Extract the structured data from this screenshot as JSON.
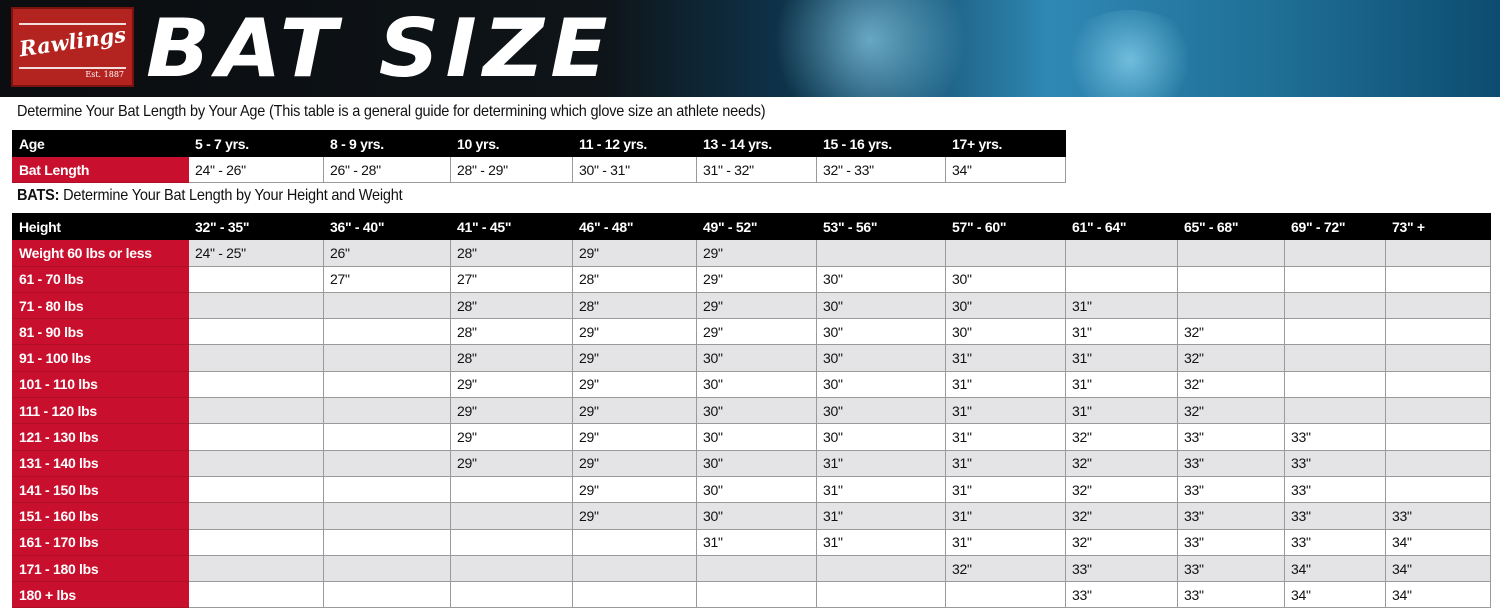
{
  "banner": {
    "logo_text": "Rawlings",
    "logo_est": "Est. 1887",
    "title": "BAT SIZE"
  },
  "age_section": {
    "caption": "Determine Your Bat Length by Your Age (This table is a general guide for determining which glove size an athlete needs)",
    "header_label": "Age",
    "row_label": "Bat Length",
    "ages": [
      "5 - 7 yrs.",
      "8 - 9 yrs.",
      "10 yrs.",
      "11 - 12 yrs.",
      "13 - 14 yrs.",
      "15 - 16 yrs.",
      "17+ yrs."
    ],
    "lengths": [
      "24\" - 26\"",
      "26\" - 28\"",
      "28\" - 29\"",
      "30\" - 31\"",
      "31\" - 32\"",
      "32\" - 33\"",
      "34\""
    ]
  },
  "hw_section": {
    "caption_bold": "BATS:",
    "caption": " Determine Your Bat Length by Your Height and Weight",
    "header_label": "Height",
    "heights": [
      "32\" - 35\"",
      "36\" - 40\"",
      "41\" - 45\"",
      "46\" - 48\"",
      "49\" - 52\"",
      "53\" - 56\"",
      "57\" - 60\"",
      "61\" - 64\"",
      "65\" - 68\"",
      "69\" - 72\"",
      "73\" +"
    ],
    "rows": [
      {
        "weight": "Weight 60 lbs or less",
        "cells": [
          "24\" - 25\"",
          "26\"",
          "28\"",
          "29\"",
          "29\"",
          "",
          "",
          "",
          "",
          "",
          ""
        ]
      },
      {
        "weight": "61 - 70 lbs",
        "cells": [
          "",
          "27\"",
          "27\"",
          "28\"",
          "29\"",
          "30\"",
          "30\"",
          "",
          "",
          "",
          ""
        ]
      },
      {
        "weight": "71 - 80 lbs",
        "cells": [
          "",
          "",
          "28\"",
          "28\"",
          "29\"",
          "30\"",
          "30\"",
          "31\"",
          "",
          "",
          ""
        ]
      },
      {
        "weight": "81 - 90 lbs",
        "cells": [
          "",
          "",
          "28\"",
          "29\"",
          "29\"",
          "30\"",
          "30\"",
          "31\"",
          "32\"",
          "",
          ""
        ]
      },
      {
        "weight": "91 - 100 lbs",
        "cells": [
          "",
          "",
          "28\"",
          "29\"",
          "30\"",
          "30\"",
          "31\"",
          "31\"",
          "32\"",
          "",
          ""
        ]
      },
      {
        "weight": "101 - 110 lbs",
        "cells": [
          "",
          "",
          "29\"",
          "29\"",
          "30\"",
          "30\"",
          "31\"",
          "31\"",
          "32\"",
          "",
          ""
        ]
      },
      {
        "weight": "111 - 120 lbs",
        "cells": [
          "",
          "",
          "29\"",
          "29\"",
          "30\"",
          "30\"",
          "31\"",
          "31\"",
          "32\"",
          "",
          ""
        ]
      },
      {
        "weight": "121 - 130 lbs",
        "cells": [
          "",
          "",
          "29\"",
          "29\"",
          "30\"",
          "30\"",
          "31\"",
          "32\"",
          "33\"",
          "33\"",
          ""
        ]
      },
      {
        "weight": "131 - 140 lbs",
        "cells": [
          "",
          "",
          "29\"",
          "29\"",
          "30\"",
          "31\"",
          "31\"",
          "32\"",
          "33\"",
          "33\"",
          ""
        ]
      },
      {
        "weight": "141 - 150 lbs",
        "cells": [
          "",
          "",
          "",
          "29\"",
          "30\"",
          "31\"",
          "31\"",
          "32\"",
          "33\"",
          "33\"",
          ""
        ]
      },
      {
        "weight": "151 - 160 lbs",
        "cells": [
          "",
          "",
          "",
          "29\"",
          "30\"",
          "31\"",
          "31\"",
          "32\"",
          "33\"",
          "33\"",
          "33\""
        ]
      },
      {
        "weight": "161 - 170 lbs",
        "cells": [
          "",
          "",
          "",
          "",
          "31\"",
          "31\"",
          "31\"",
          "32\"",
          "33\"",
          "33\"",
          "34\""
        ]
      },
      {
        "weight": "171 - 180 lbs",
        "cells": [
          "",
          "",
          "",
          "",
          "",
          "",
          "32\"",
          "33\"",
          "33\"",
          "34\"",
          "34\""
        ]
      },
      {
        "weight": "180 + lbs",
        "cells": [
          "",
          "",
          "",
          "",
          "",
          "",
          "",
          "33\"",
          "33\"",
          "34\"",
          "34\""
        ]
      }
    ]
  },
  "colors": {
    "red": "#c8102e",
    "black": "#000000",
    "stripe": "#e4e4e6"
  }
}
